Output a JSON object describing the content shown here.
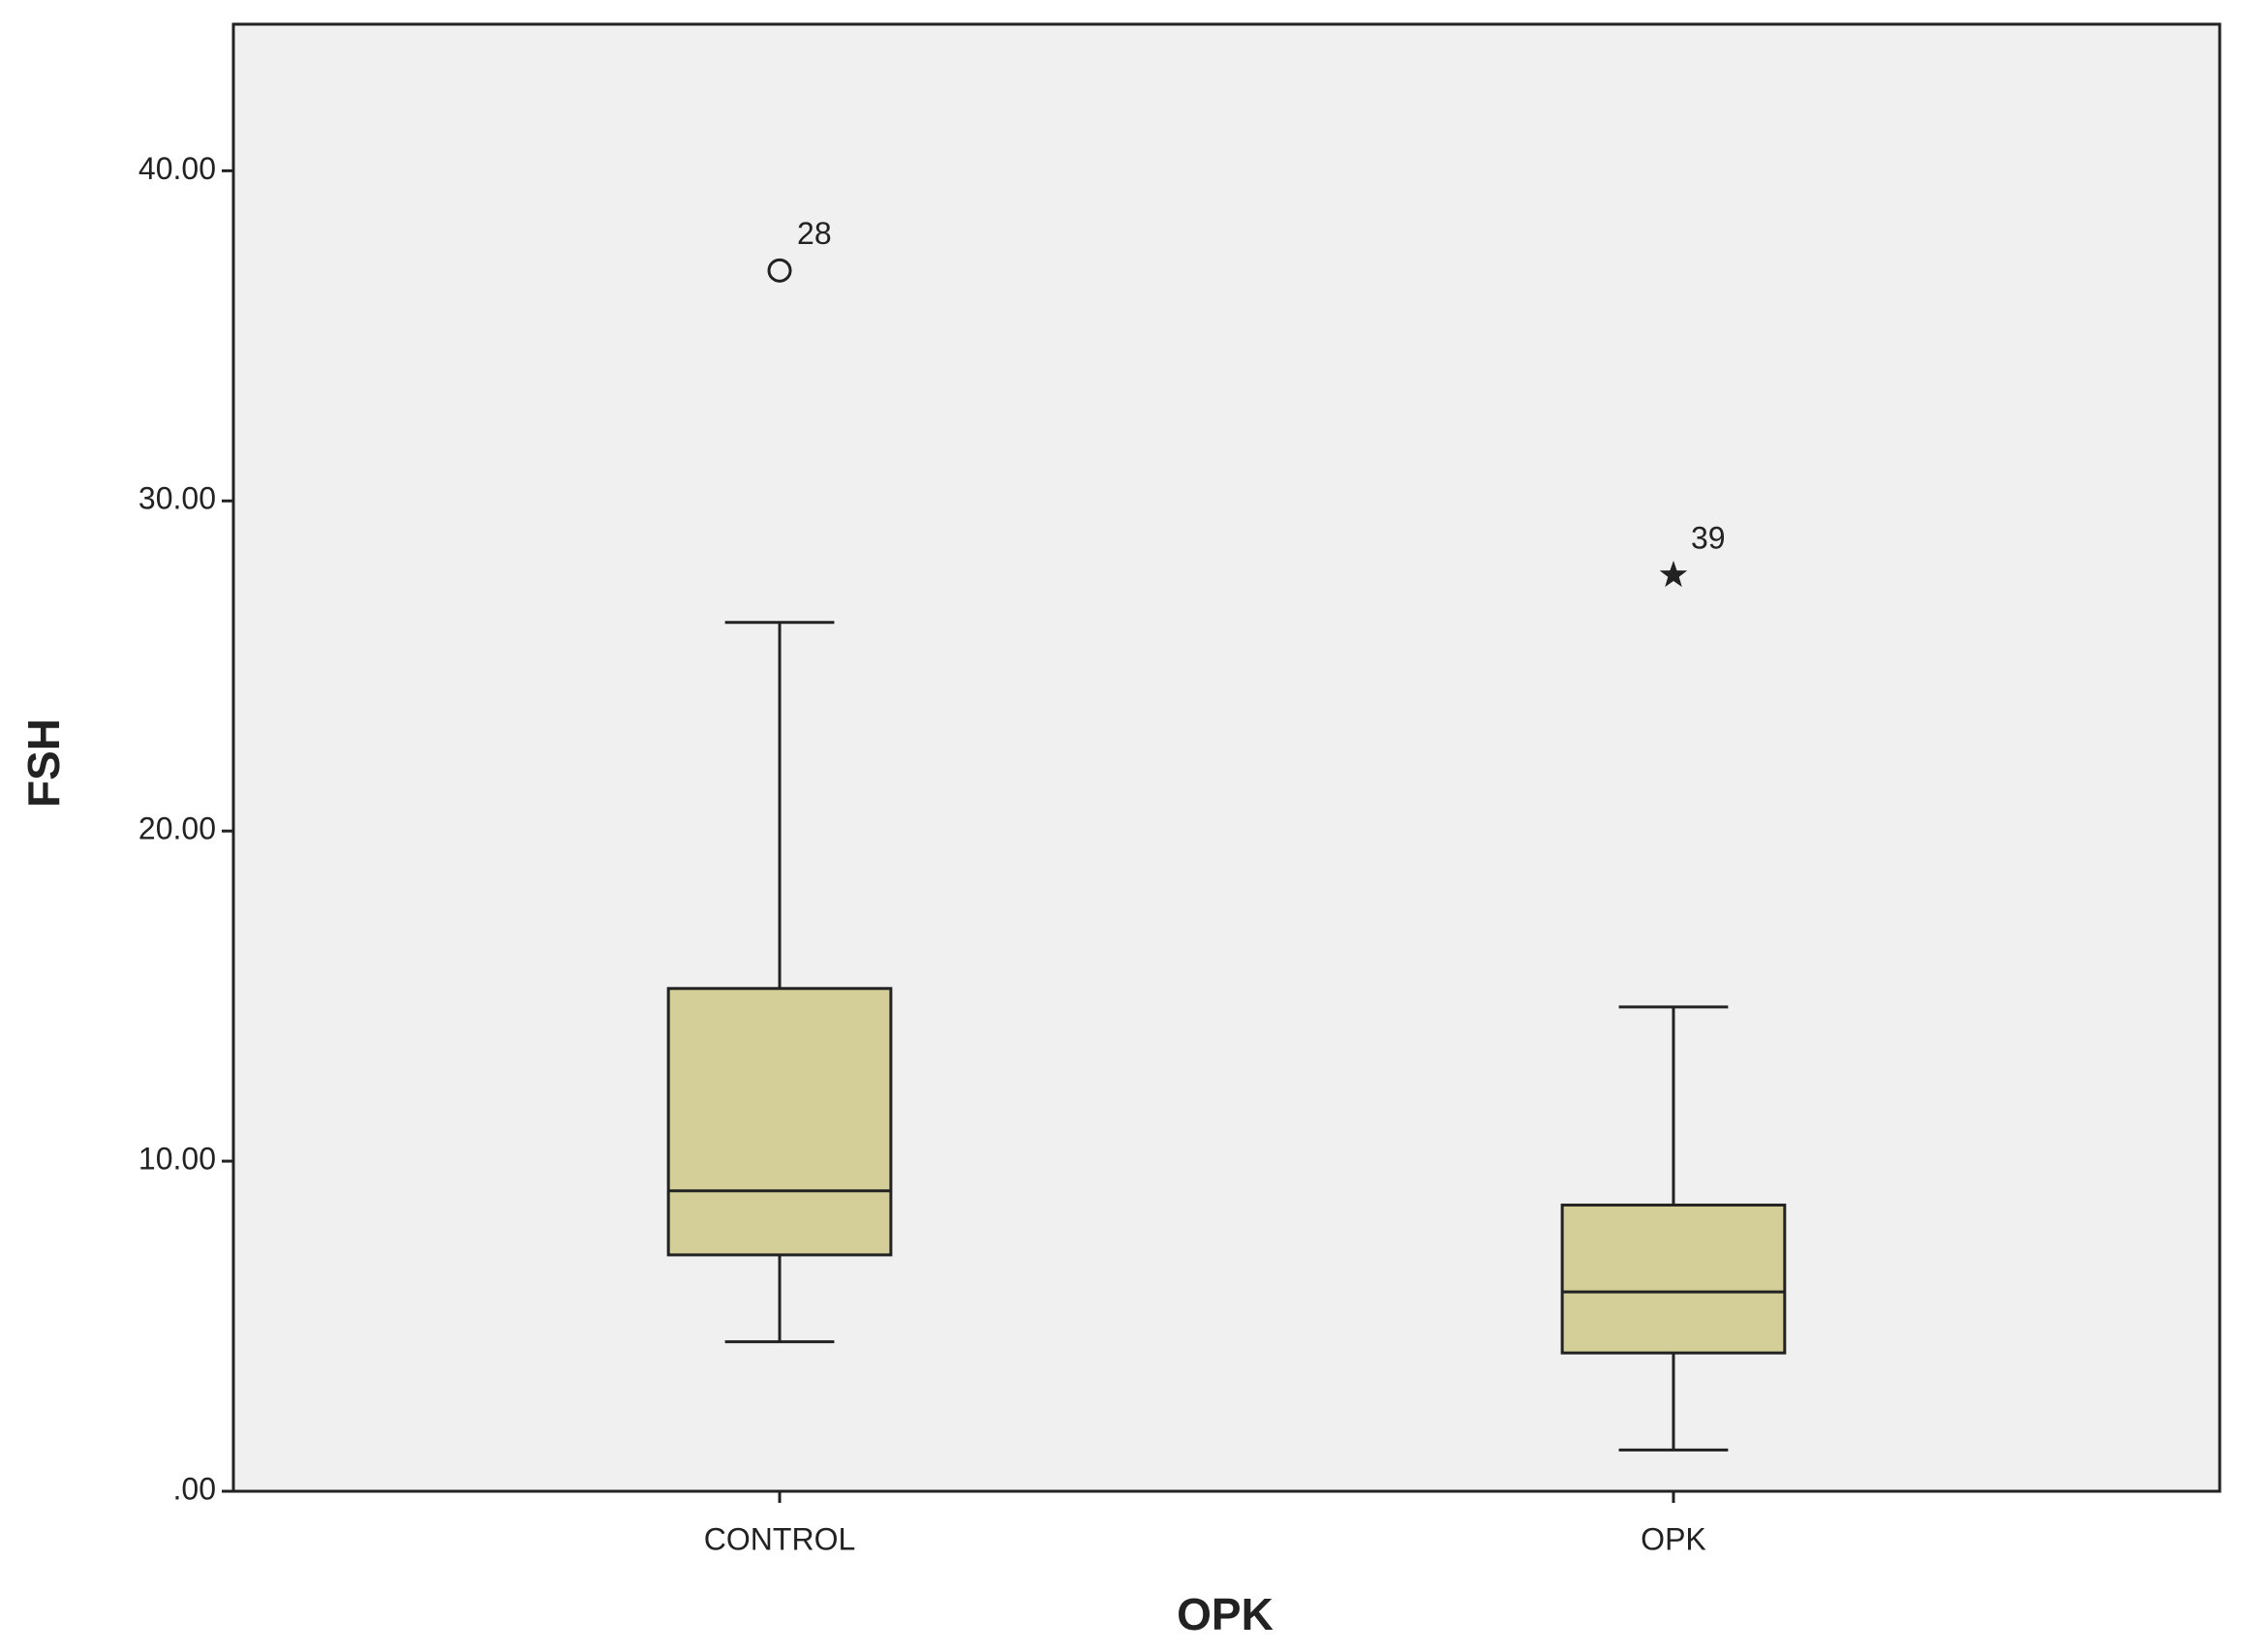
{
  "chart_data": {
    "type": "boxplot",
    "x_label": "OPK",
    "y_label": "FSH",
    "categories": [
      "CONTROL",
      "OPK"
    ],
    "boxes": [
      {
        "min": 4.53,
        "q1": 7.16,
        "median": 9.1,
        "q3": 15.23,
        "max": 26.32
      },
      {
        "min": 1.25,
        "q1": 4.19,
        "median": 6.04,
        "q3": 8.67,
        "max": 14.67
      }
    ],
    "outliers": [
      {
        "category": 0,
        "value": 36.98,
        "case": "28",
        "symbol": "circle"
      },
      {
        "category": 1,
        "value": 27.75,
        "case": "39",
        "symbol": "star"
      }
    ],
    "color": "#d4cf98",
    "background": "#f0f0f0",
    "ylim": [
      0,
      44.44
    ],
    "yticks": [
      {
        "value": 0,
        "label": ".00"
      },
      {
        "value": 10,
        "label": "10.00"
      },
      {
        "value": 20,
        "label": "20.00"
      },
      {
        "value": 30,
        "label": "30.00"
      },
      {
        "value": 40,
        "label": "40.00"
      }
    ],
    "grid": false
  }
}
